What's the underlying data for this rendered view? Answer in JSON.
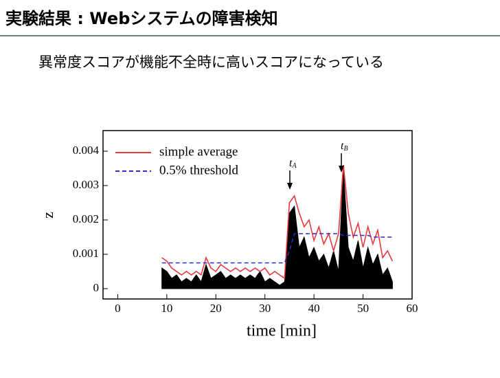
{
  "title": "実験結果 : Webシステムの障害検知",
  "subtitle": "異常度スコアが機能不全時に高いスコアになっている",
  "chart_data": {
    "type": "line",
    "xlabel": "time [min]",
    "ylabel": "z",
    "x": [
      9,
      10,
      11,
      12,
      13,
      14,
      15,
      16,
      17,
      18,
      19,
      20,
      21,
      22,
      23,
      24,
      25,
      26,
      27,
      28,
      29,
      30,
      31,
      32,
      33,
      34,
      35,
      36,
      37,
      38,
      39,
      40,
      41,
      42,
      43,
      44,
      45,
      46,
      47,
      48,
      49,
      50,
      51,
      52,
      53,
      54,
      55,
      56
    ],
    "series": [
      {
        "color": "#000000",
        "fill": true,
        "values": [
          0.0006,
          0.0005,
          0.0003,
          0.0004,
          0.0002,
          0.0003,
          0.0002,
          0.0004,
          0.0002,
          0.0007,
          0.0003,
          0.0004,
          0.0005,
          0.0003,
          0.0004,
          0.0003,
          0.0004,
          0.0003,
          0.0004,
          0.0003,
          0.0005,
          0.0002,
          0.0003,
          0.0002,
          0.0001,
          0.0002,
          0.0022,
          0.0024,
          0.0012,
          0.0015,
          0.0009,
          0.0012,
          0.0008,
          0.001,
          0.0006,
          0.0011,
          0.0005,
          0.0035,
          0.0012,
          0.0008,
          0.0014,
          0.0006,
          0.0012,
          0.0007,
          0.001,
          0.0004,
          0.0006,
          0.0002
        ]
      },
      {
        "name": "simple average",
        "color": "#e8383d",
        "values": [
          0.0009,
          0.0008,
          0.0006,
          0.0005,
          0.0004,
          0.0005,
          0.0004,
          0.0005,
          0.0004,
          0.0009,
          0.0006,
          0.0005,
          0.0007,
          0.0006,
          0.0005,
          0.0006,
          0.0005,
          0.0006,
          0.0005,
          0.0006,
          0.0005,
          0.0006,
          0.0004,
          0.0005,
          0.0004,
          0.0003,
          0.0025,
          0.0027,
          0.0022,
          0.0018,
          0.002,
          0.0014,
          0.0018,
          0.0013,
          0.0016,
          0.0011,
          0.0016,
          0.0036,
          0.0022,
          0.0015,
          0.0019,
          0.0012,
          0.0018,
          0.0013,
          0.0017,
          0.0009,
          0.0011,
          0.0008
        ]
      },
      {
        "name": "0.5% threshold",
        "color": "#2a2ad0",
        "dashed": true,
        "values": [
          0.00075,
          0.00075,
          0.00075,
          0.00075,
          0.00075,
          0.00075,
          0.00075,
          0.00075,
          0.00075,
          0.00075,
          0.00075,
          0.00075,
          0.00075,
          0.00075,
          0.00075,
          0.00075,
          0.00075,
          0.00075,
          0.00075,
          0.00075,
          0.00075,
          0.00075,
          0.00075,
          0.00075,
          0.00075,
          0.00075,
          0.0011,
          0.0016,
          0.0016,
          0.0016,
          0.0016,
          0.0016,
          0.0016,
          0.0016,
          0.0016,
          0.0016,
          0.0016,
          0.00155,
          0.00155,
          0.00155,
          0.00155,
          0.00155,
          0.00155,
          0.0015,
          0.0015,
          0.0015,
          0.0015,
          0.0015
        ]
      }
    ],
    "annotations": [
      {
        "text": "t",
        "sub": "A",
        "x": 35.5,
        "y": 0.0036
      },
      {
        "text": "t",
        "sub": "B",
        "x": 46,
        "y": 0.0041
      }
    ],
    "xlim": [
      -3,
      60
    ],
    "xticks": [
      0,
      10,
      20,
      30,
      40,
      50,
      60
    ],
    "ylim": [
      -0.0003,
      0.0046
    ],
    "yticks": [
      0,
      0.001,
      0.002,
      0.003,
      0.004
    ],
    "legend": "upper left"
  }
}
